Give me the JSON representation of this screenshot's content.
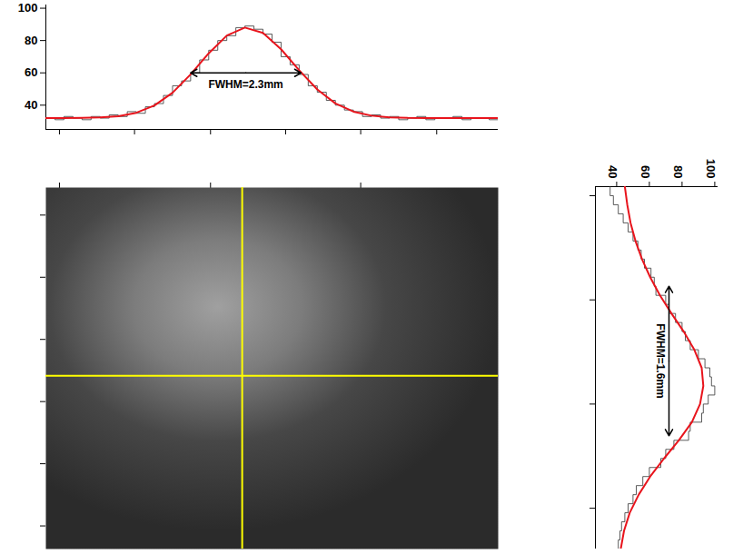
{
  "chart_data": [
    {
      "type": "histogram",
      "bins": [
        0,
        10,
        20,
        30,
        40,
        50,
        60,
        70,
        80,
        90,
        100,
        110,
        120,
        130,
        140,
        150,
        160,
        170,
        180,
        190,
        200,
        210,
        220,
        230,
        240,
        250,
        260,
        270,
        280,
        290,
        300,
        310,
        320,
        330,
        340,
        350,
        360,
        370,
        380,
        390,
        400,
        410,
        420,
        430,
        440,
        450,
        460,
        470,
        480,
        490,
        500
      ],
      "counts": [
        32,
        31,
        33,
        32,
        31,
        33,
        32,
        34,
        33,
        36,
        35,
        39,
        41,
        46,
        52,
        55,
        60,
        68,
        74,
        80,
        83,
        88,
        89,
        87,
        84,
        79,
        70,
        65,
        59,
        52,
        48,
        43,
        40,
        37,
        36,
        33,
        34,
        32,
        33,
        31,
        32,
        33,
        31,
        32,
        32,
        33,
        31,
        32,
        32,
        31
      ],
      "color": "#333333",
      "fit": {
        "x": [
          0,
          20,
          40,
          60,
          80,
          100,
          120,
          140,
          160,
          180,
          200,
          220,
          240,
          260,
          280,
          300,
          320,
          340,
          360,
          380,
          400,
          420,
          440,
          460,
          480,
          500
        ],
        "values": [
          32,
          32,
          32.1,
          32.4,
          33.2,
          35.3,
          39.8,
          47.7,
          59.1,
          72.1,
          83.1,
          88,
          84.7,
          74.6,
          61.6,
          49.7,
          41.1,
          36,
          33.5,
          32.5,
          32.1,
          32,
          32,
          32,
          32,
          32
        ],
        "color": "#e8141c"
      },
      "xlim": [
        0,
        500
      ],
      "xticks": [
        15,
        98,
        182,
        265,
        348,
        432
      ],
      "ylim": [
        25,
        102
      ],
      "yticks": [
        40,
        60,
        80,
        100
      ],
      "tick_labels": "y",
      "annotations": [
        {
          "text": "FWHM=2.3mm",
          "x1": 160,
          "x2": 282,
          "y": 60
        }
      ]
    },
    {
      "type": "image",
      "xlim": [
        0,
        500
      ],
      "xticks": [
        15,
        182,
        348
      ],
      "ylim": [
        0,
        407
      ],
      "yticks": [
        31,
        101,
        171,
        241,
        311,
        381
      ],
      "tick_labels": false,
      "crosshair": {
        "x": 217,
        "y": 212,
        "color": "#ffff00"
      }
    },
    {
      "type": "histogram",
      "orientation": "horizontal",
      "bins": [
        0,
        10,
        20,
        30,
        40,
        50,
        60,
        70,
        80,
        90,
        100,
        110,
        120,
        130,
        140,
        150,
        160,
        170,
        180,
        190,
        200,
        210,
        220,
        230,
        240,
        250,
        260,
        270,
        280,
        290,
        300,
        310,
        320,
        330,
        340,
        350,
        360,
        370,
        380,
        390,
        400
      ],
      "counts": [
        36,
        38,
        41,
        44,
        47,
        50,
        53,
        55,
        57,
        61,
        63,
        64,
        70,
        72,
        76,
        80,
        82,
        85,
        90,
        94,
        97,
        98,
        100,
        96,
        93,
        92,
        85,
        84,
        75,
        70,
        67,
        60,
        56,
        52,
        50,
        47,
        45,
        43,
        42,
        41
      ],
      "color": "#333333",
      "fit": {
        "x": [
          0,
          20,
          40,
          60,
          80,
          100,
          120,
          140,
          160,
          180,
          200,
          220,
          240,
          260,
          280,
          300,
          320,
          340,
          360,
          380,
          400
        ],
        "values": [
          45,
          46.5,
          48.5,
          51.5,
          55.5,
          60.5,
          66.5,
          73.5,
          81,
          87.5,
          92,
          93,
          91,
          86,
          78,
          69,
          60.5,
          53.5,
          48,
          44.5,
          42.5
        ],
        "color": "#e8141c"
      },
      "xlim": [
        27,
        102
      ],
      "xticks": [
        40,
        60,
        80,
        100
      ],
      "ylim": [
        0,
        400
      ],
      "yticks": [
        10,
        125,
        240,
        355
      ],
      "tick_labels": "x",
      "annotations": [
        {
          "text": "FWHM=1.6mm",
          "y1": 110,
          "y2": 275,
          "x": 72
        }
      ]
    }
  ]
}
